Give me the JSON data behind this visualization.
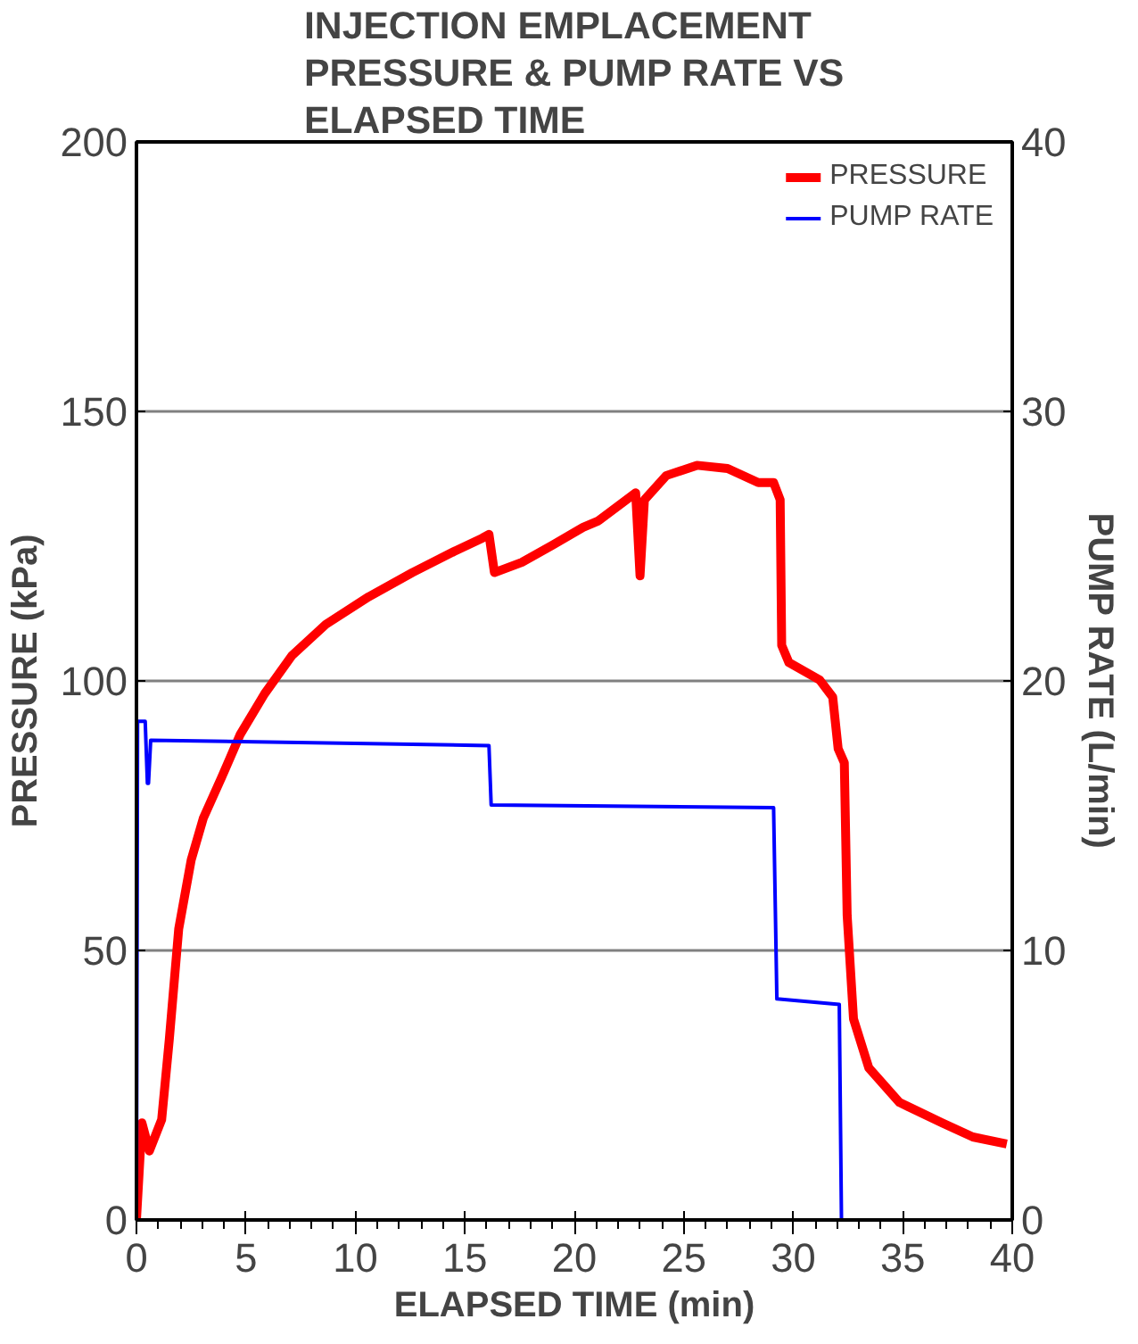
{
  "chart_data": {
    "type": "line",
    "title": "INJECTION EMPLACEMENT PRESSURE & PUMP RATE VS ELAPSED TIME",
    "xlabel": "ELAPSED TIME (min)",
    "ylabel": "PRESSURE (kPa)",
    "y2label": "PUMP RATE (L/min)",
    "xlim": [
      0,
      40
    ],
    "xticks": [
      0,
      5,
      10,
      15,
      20,
      25,
      30,
      35,
      40
    ],
    "ylim": [
      0,
      200
    ],
    "yticks": [
      0,
      50,
      100,
      150,
      200
    ],
    "y2lim": [
      0,
      40
    ],
    "y2ticks": [
      0,
      10,
      20,
      30,
      40
    ],
    "grid": "y",
    "legend": "top right",
    "marker": "none",
    "series": [
      {
        "name": "PRESSURE",
        "color": "#ff0000",
        "x": [
          0,
          0.25,
          0.59,
          1.15,
          1.5,
          1.93,
          2.5,
          3.05,
          3.9,
          4.73,
          5.85,
          7.1,
          8.65,
          10.6,
          12.6,
          14.5,
          15.8,
          16.1,
          16.35,
          17.6,
          19.0,
          20.4,
          21.1,
          22.8,
          23.0,
          23.2,
          24.2,
          25.6,
          27.0,
          28.4,
          29.1,
          29.4,
          29.47,
          29.8,
          31.2,
          31.8,
          32.05,
          32.33,
          32.46,
          32.75,
          33.45,
          34.85,
          36.8,
          38.2,
          39.75
        ],
        "values": [
          0,
          18,
          12.8,
          18.6,
          33.5,
          54,
          66.8,
          74.5,
          82.2,
          90,
          97.6,
          104.7,
          110.5,
          115.6,
          120.1,
          124,
          126.5,
          127.2,
          120.1,
          122,
          125.2,
          128.5,
          129.7,
          134.9,
          119.5,
          133.6,
          138.1,
          140,
          139.4,
          136.8,
          136.8,
          133.6,
          106.6,
          103.4,
          100.2,
          97,
          87.4,
          84.8,
          56.5,
          37.3,
          28.2,
          21.8,
          18,
          15.4,
          14.1
        ]
      },
      {
        "name": "PUMP RATE",
        "color": "#0000ff",
        "axis": "y2",
        "x": [
          0,
          0.05,
          0.4,
          0.5,
          0.55,
          0.65,
          16.1,
          16.2,
          29.1,
          29.25,
          32.1,
          32.2
        ],
        "values": [
          0,
          18.5,
          18.5,
          16.2,
          16.2,
          17.8,
          17.6,
          15.4,
          15.3,
          8.2,
          8.0,
          0
        ]
      }
    ]
  }
}
